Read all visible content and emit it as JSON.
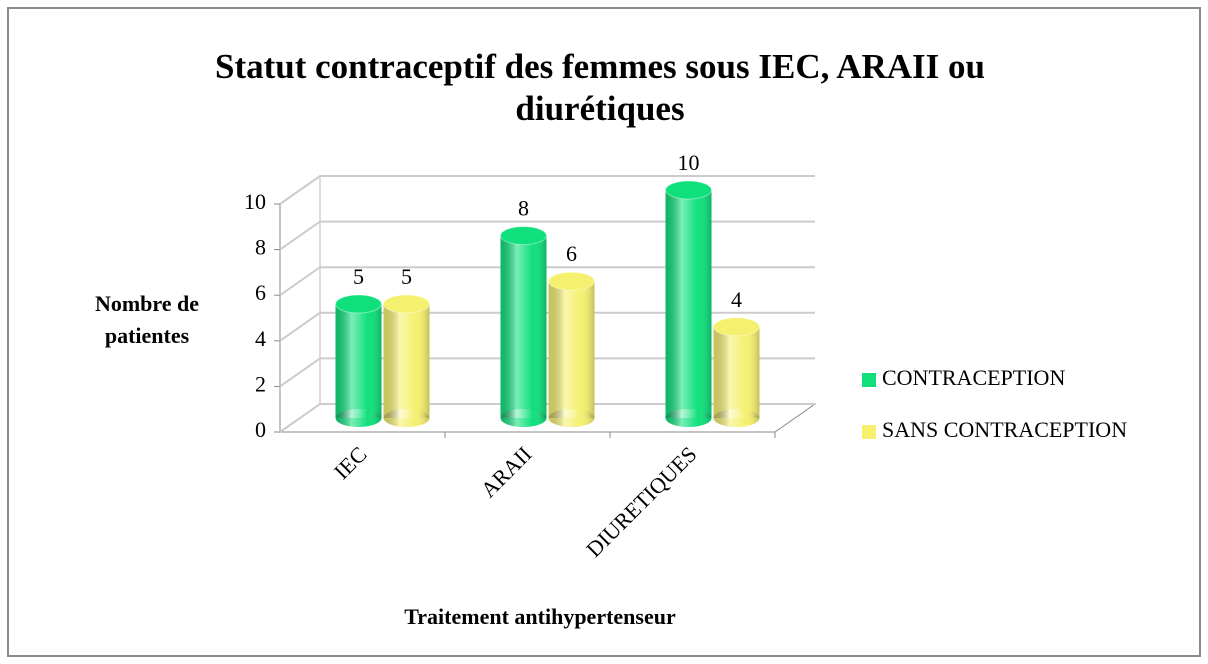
{
  "chart_data": {
    "type": "bar3d",
    "title": "Statut contraceptif des femmes sous IEC, ARAII ou diurétiques",
    "xlabel": "Traitement antihypertenseur",
    "ylabel": "Nombre de patientes",
    "categories": [
      "IEC",
      "ARAII",
      "DIURETIQUES"
    ],
    "series": [
      {
        "name": "CONTRACEPTION",
        "color": "#0fe07c",
        "values": [
          5,
          8,
          10
        ]
      },
      {
        "name": "SANS CONTRACEPTION",
        "color": "#f5f06e",
        "values": [
          5,
          6,
          4
        ]
      }
    ],
    "ylim": [
      0,
      10
    ],
    "yticks": [
      0,
      2,
      4,
      6,
      8,
      10
    ],
    "grid": true,
    "legend": "right"
  }
}
